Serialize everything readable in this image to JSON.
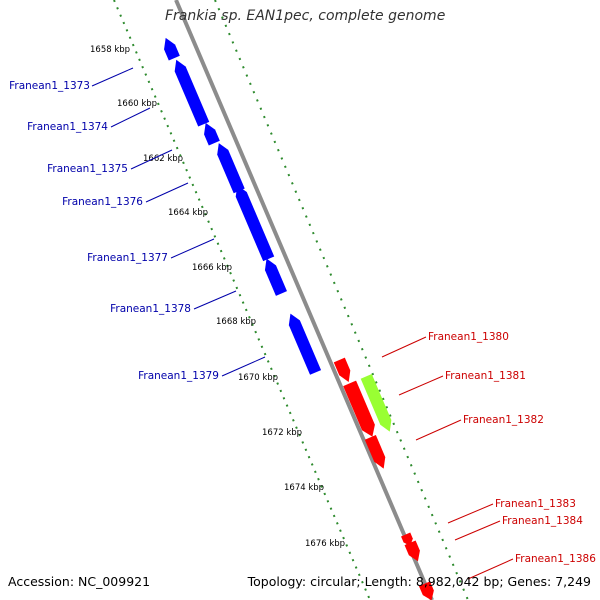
{
  "title": "Frankia sp. EAN1pec, complete genome",
  "accession": "Accession: NC_009921",
  "summary": "Topology: circular; Length: 8,982,042 bp; Genes: 7,249",
  "colors": {
    "backbone": "#8c8c8c",
    "forward_gene": "#ff0000",
    "reverse_gene": "#0000ff",
    "highlight_gene": "#99ff33",
    "tick_marks": "#2e8b2e",
    "forward_label": "#cc0000",
    "reverse_label": "#0000aa"
  },
  "ticks": [
    "1658 kbp",
    "1660 kbp",
    "1662 kbp",
    "1664 kbp",
    "1666 kbp",
    "1668 kbp",
    "1670 kbp",
    "1672 kbp",
    "1674 kbp",
    "1676 kbp"
  ],
  "reverse_genes": [
    {
      "label": "Franean1_1373"
    },
    {
      "label": "Franean1_1374"
    },
    {
      "label": "Franean1_1375"
    },
    {
      "label": "Franean1_1376"
    },
    {
      "label": "Franean1_1377"
    },
    {
      "label": "Franean1_1378"
    },
    {
      "label": "Franean1_1379"
    }
  ],
  "forward_genes": [
    {
      "label": "Franean1_1380"
    },
    {
      "label": "Franean1_1381"
    },
    {
      "label": "Franean1_1382"
    },
    {
      "label": "Franean1_1383"
    },
    {
      "label": "Franean1_1384"
    },
    {
      "label": "Franean1_1386"
    }
  ]
}
